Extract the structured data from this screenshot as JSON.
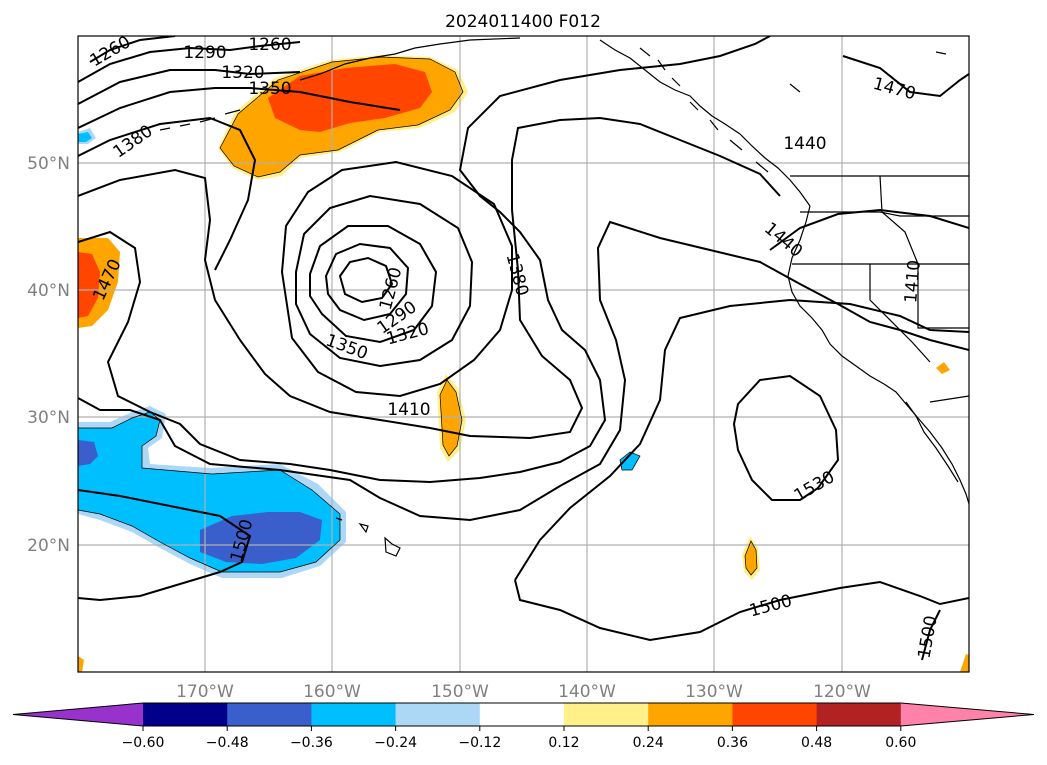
{
  "title": "2024011400 F012",
  "lat_labels": [
    "50°N",
    "40°N",
    "30°N",
    "20°N"
  ],
  "lon_labels": [
    "170°W",
    "160°W",
    "150°W",
    "140°W",
    "130°W",
    "120°W"
  ],
  "contour_labels": {
    "c1260a": "1260",
    "c1290a": "1290",
    "c1260b": "1260",
    "c1320a": "1320",
    "c1350a": "1350",
    "c1380a": "1380",
    "c1470a": "1470",
    "c1440a": "1440",
    "c1440b": "1440",
    "c1410a": "1410",
    "c1260c": "1260",
    "c1290c": "1290",
    "c1320c": "1320",
    "c1350c": "1350",
    "c1380c": "1380",
    "c1410c": "1410",
    "c1470b": "1470",
    "c1530": "1530",
    "c1500a": "1500",
    "c1500b": "1500",
    "c1500c": "1500"
  },
  "colorbar": {
    "ticks": [
      "−0.60",
      "−0.48",
      "−0.36",
      "−0.24",
      "−0.12",
      "0.12",
      "0.24",
      "0.36",
      "0.48",
      "0.60"
    ],
    "colors": [
      "#9932cc",
      "#00008b",
      "#3a5fcd",
      "#00bfff",
      "#add8f5",
      "#ffffff",
      "#fff08a",
      "#ffa500",
      "#ff4500",
      "#b22222",
      "#ff82ab"
    ]
  },
  "shading_colors": {
    "orange": "#ffa500",
    "red_orange": "#ff4500",
    "yellow": "#fff08a",
    "sky": "#00bfff",
    "light_blue": "#add8f5",
    "royal": "#3a5fcd"
  }
}
